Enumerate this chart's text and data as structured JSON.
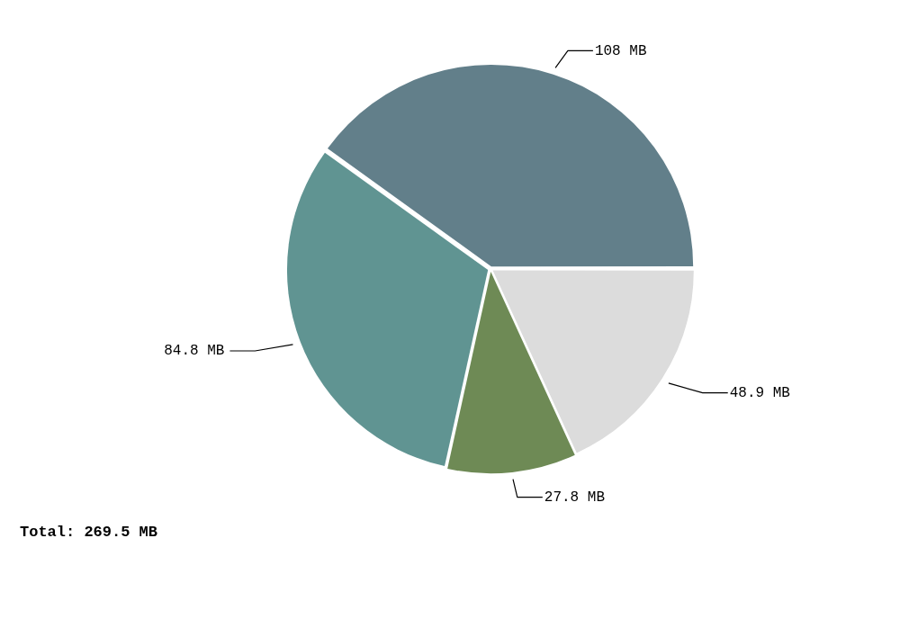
{
  "chart_data": {
    "type": "pie",
    "categories": [
      null,
      null,
      null,
      null
    ],
    "values": [
      108,
      48.9,
      27.8,
      84.8
    ],
    "value_labels": [
      "108 MB",
      "48.9 MB",
      "27.8 MB",
      "84.8 MB"
    ],
    "colors": [
      "#627f8a",
      "#dcdcdc",
      "#6e8a55",
      "#609492"
    ],
    "annotations": [
      "Total: 269.5 MB"
    ]
  }
}
